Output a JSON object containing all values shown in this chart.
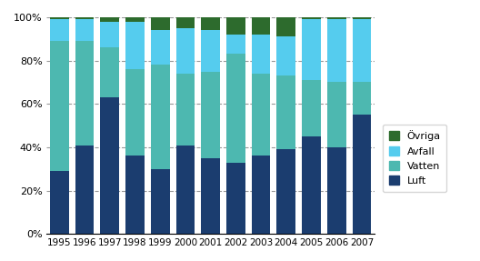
{
  "years": [
    1995,
    1996,
    1997,
    1998,
    1999,
    2000,
    2001,
    2002,
    2003,
    2004,
    2005,
    2006,
    2007
  ],
  "luft": [
    29,
    41,
    63,
    36,
    30,
    41,
    35,
    33,
    36,
    39,
    45,
    40,
    55
  ],
  "vatten": [
    60,
    48,
    23,
    40,
    48,
    33,
    40,
    50,
    38,
    34,
    26,
    30,
    15
  ],
  "avfall": [
    10,
    10,
    12,
    22,
    16,
    21,
    19,
    9,
    18,
    18,
    28,
    29,
    29
  ],
  "ovriga": [
    1,
    1,
    2,
    2,
    6,
    5,
    6,
    8,
    8,
    9,
    1,
    1,
    1
  ],
  "colors": {
    "luft": "#1b3d6f",
    "vatten": "#4db8b0",
    "avfall": "#55ccee",
    "ovriga": "#2d6b2d"
  },
  "legend_labels": [
    "Övriga",
    "Avfall",
    "Vatten",
    "Luft"
  ],
  "yticks": [
    0,
    20,
    40,
    60,
    80,
    100
  ],
  "yticklabels": [
    "0%",
    "20%",
    "40%",
    "60%",
    "80%",
    "100%"
  ],
  "background_color": "#ffffff",
  "grid_color": "#999999",
  "figsize": [
    5.28,
    2.87
  ],
  "dpi": 100
}
